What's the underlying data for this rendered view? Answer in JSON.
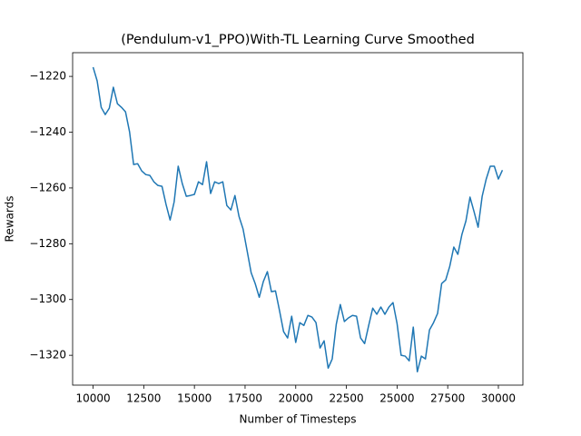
{
  "chart_data": {
    "type": "line",
    "title": "(Pendulum-v1_PPO)With-TL Learning Curve Smoothed",
    "xlabel": "Number of Timesteps",
    "ylabel": "Rewards",
    "x": [
      10000,
      10200,
      10400,
      10600,
      10800,
      11000,
      11200,
      11400,
      11600,
      11800,
      12000,
      12200,
      12400,
      12600,
      12800,
      13000,
      13200,
      13400,
      13600,
      13800,
      14000,
      14200,
      14400,
      14600,
      14800,
      15000,
      15200,
      15400,
      15600,
      15800,
      16000,
      16200,
      16400,
      16600,
      16800,
      17000,
      17200,
      17400,
      17600,
      17800,
      18000,
      18200,
      18400,
      18600,
      18800,
      19000,
      19200,
      19400,
      19600,
      19800,
      20000,
      20200,
      20400,
      20600,
      20800,
      21000,
      21200,
      21400,
      21600,
      21800,
      22000,
      22200,
      22400,
      22600,
      22800,
      23000,
      23200,
      23400,
      23600,
      23800,
      24000,
      24200,
      24400,
      24600,
      24800,
      25000,
      25200,
      25400,
      25600,
      25800,
      26000,
      26200,
      26400,
      26600,
      26800,
      27000,
      27200,
      27400,
      27600,
      27800,
      28000,
      28200,
      28400,
      28600,
      28800,
      29000,
      29200,
      29400,
      29600,
      29800,
      30000,
      30200
    ],
    "series": [
      {
        "name": "With-TL",
        "color": "#1f77b4",
        "values": [
          -1216.7,
          -1221.6,
          -1231.1,
          -1233.7,
          -1231.4,
          -1223.9,
          -1229.8,
          -1231.1,
          -1232.7,
          -1239.9,
          -1251.6,
          -1251.3,
          -1253.9,
          -1255.2,
          -1255.5,
          -1257.8,
          -1259.1,
          -1259.4,
          -1265.9,
          -1271.5,
          -1265.0,
          -1252.2,
          -1258.4,
          -1263.0,
          -1262.7,
          -1262.3,
          -1257.8,
          -1258.8,
          -1250.6,
          -1262.0,
          -1257.8,
          -1258.4,
          -1257.8,
          -1266.3,
          -1267.9,
          -1262.7,
          -1270.2,
          -1274.7,
          -1282.5,
          -1290.4,
          -1294.3,
          -1299.2,
          -1293.6,
          -1290.0,
          -1297.2,
          -1296.9,
          -1304.0,
          -1311.5,
          -1313.8,
          -1306.0,
          -1315.4,
          -1308.3,
          -1309.3,
          -1305.7,
          -1306.3,
          -1308.3,
          -1317.4,
          -1314.8,
          -1324.6,
          -1321.3,
          -1308.9,
          -1301.8,
          -1307.9,
          -1306.6,
          -1305.7,
          -1306.0,
          -1313.8,
          -1315.8,
          -1309.3,
          -1303.1,
          -1305.3,
          -1302.7,
          -1305.3,
          -1302.7,
          -1301.1,
          -1308.6,
          -1320.0,
          -1320.3,
          -1322.0,
          -1309.9,
          -1325.9,
          -1320.3,
          -1321.3,
          -1310.9,
          -1308.3,
          -1305.0,
          -1294.3,
          -1293.0,
          -1288.1,
          -1281.2,
          -1283.8,
          -1276.7,
          -1271.8,
          -1263.3,
          -1268.5,
          -1274.1,
          -1263.0,
          -1256.8,
          -1252.2,
          -1252.2,
          -1256.8,
          -1253.6
        ]
      }
    ],
    "xlim": [
      8990,
      31210
    ],
    "ylim": [
      -1330.7,
      -1211.5
    ],
    "xticks": [
      10000,
      12500,
      15000,
      17500,
      20000,
      22500,
      25000,
      27500,
      30000
    ],
    "yticks": [
      {
        "value": -1320,
        "label": "−1320"
      },
      {
        "value": -1300,
        "label": "−1300"
      },
      {
        "value": -1280,
        "label": "−1280"
      },
      {
        "value": -1260,
        "label": "−1260"
      },
      {
        "value": -1240,
        "label": "−1240"
      },
      {
        "value": -1220,
        "label": "−1220"
      }
    ],
    "grid": false
  }
}
